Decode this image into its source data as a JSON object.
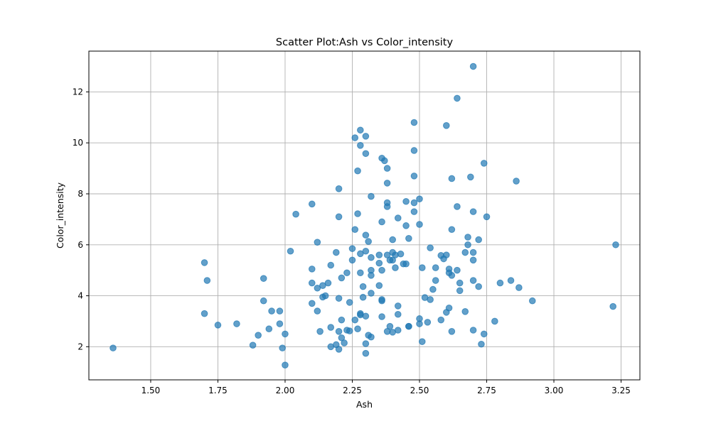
{
  "chart_data": {
    "type": "scatter",
    "title": "Scatter Plot:Ash vs Color_intensity",
    "xlabel": "Ash",
    "ylabel": "Color_intensity",
    "xlim": [
      1.27,
      3.32
    ],
    "ylim": [
      0.7,
      13.6
    ],
    "xticks": [
      1.5,
      1.75,
      2.0,
      2.25,
      2.5,
      2.75,
      3.0,
      3.25
    ],
    "xtick_labels": [
      "1.50",
      "1.75",
      "2.00",
      "2.25",
      "2.50",
      "2.75",
      "3.00",
      "3.25"
    ],
    "yticks": [
      2,
      4,
      6,
      8,
      10,
      12
    ],
    "ytick_labels": [
      "2",
      "4",
      "6",
      "8",
      "10",
      "12"
    ],
    "grid": true,
    "marker_color": "#1f77b4",
    "marker_opacity": 0.7,
    "points": [
      [
        1.36,
        1.95
      ],
      [
        1.7,
        5.3
      ],
      [
        1.7,
        3.3
      ],
      [
        1.71,
        4.6
      ],
      [
        1.75,
        2.85
      ],
      [
        1.82,
        2.9
      ],
      [
        1.88,
        2.06
      ],
      [
        1.9,
        2.45
      ],
      [
        1.92,
        4.68
      ],
      [
        1.92,
        3.8
      ],
      [
        1.94,
        2.7
      ],
      [
        1.95,
        3.4
      ],
      [
        1.98,
        3.4
      ],
      [
        1.98,
        2.9
      ],
      [
        1.99,
        1.95
      ],
      [
        2.0,
        2.5
      ],
      [
        2.0,
        1.28
      ],
      [
        2.02,
        5.75
      ],
      [
        2.04,
        7.2
      ],
      [
        2.1,
        7.6
      ],
      [
        2.1,
        5.05
      ],
      [
        2.1,
        4.5
      ],
      [
        2.1,
        3.7
      ],
      [
        2.12,
        6.1
      ],
      [
        2.12,
        4.3
      ],
      [
        2.12,
        3.4
      ],
      [
        2.13,
        2.6
      ],
      [
        2.14,
        4.4
      ],
      [
        2.14,
        3.95
      ],
      [
        2.15,
        4.0
      ],
      [
        2.16,
        4.5
      ],
      [
        2.17,
        5.2
      ],
      [
        2.17,
        2.76
      ],
      [
        2.17,
        2.0
      ],
      [
        2.19,
        5.7
      ],
      [
        2.19,
        2.08
      ],
      [
        2.2,
        8.2
      ],
      [
        2.2,
        7.1
      ],
      [
        2.2,
        3.9
      ],
      [
        2.2,
        2.6
      ],
      [
        2.2,
        1.9
      ],
      [
        2.21,
        4.7
      ],
      [
        2.21,
        3.05
      ],
      [
        2.21,
        2.35
      ],
      [
        2.22,
        2.15
      ],
      [
        2.23,
        4.9
      ],
      [
        2.23,
        2.65
      ],
      [
        2.24,
        3.74
      ],
      [
        2.24,
        2.62
      ],
      [
        2.25,
        5.85
      ],
      [
        2.25,
        5.4
      ],
      [
        2.26,
        10.2
      ],
      [
        2.26,
        6.6
      ],
      [
        2.26,
        3.05
      ],
      [
        2.27,
        8.9
      ],
      [
        2.27,
        7.22
      ],
      [
        2.27,
        2.7
      ],
      [
        2.28,
        10.5
      ],
      [
        2.28,
        9.9
      ],
      [
        2.28,
        5.65
      ],
      [
        2.28,
        4.9
      ],
      [
        2.28,
        3.3
      ],
      [
        2.28,
        3.25
      ],
      [
        2.29,
        4.36
      ],
      [
        2.29,
        3.94
      ],
      [
        2.3,
        10.26
      ],
      [
        2.3,
        9.58
      ],
      [
        2.3,
        6.38
      ],
      [
        2.3,
        5.75
      ],
      [
        2.3,
        3.2
      ],
      [
        2.3,
        2.12
      ],
      [
        2.3,
        1.74
      ],
      [
        2.31,
        6.13
      ],
      [
        2.31,
        2.45
      ],
      [
        2.32,
        7.9
      ],
      [
        2.32,
        5.5
      ],
      [
        2.32,
        5.0
      ],
      [
        2.32,
        4.8
      ],
      [
        2.32,
        4.1
      ],
      [
        2.32,
        2.38
      ],
      [
        2.35,
        5.6
      ],
      [
        2.35,
        5.28
      ],
      [
        2.35,
        4.4
      ],
      [
        2.36,
        9.4
      ],
      [
        2.36,
        6.9
      ],
      [
        2.36,
        5.0
      ],
      [
        2.36,
        3.85
      ],
      [
        2.36,
        3.8
      ],
      [
        2.36,
        3.18
      ],
      [
        2.37,
        9.3
      ],
      [
        2.38,
        9.0
      ],
      [
        2.38,
        8.42
      ],
      [
        2.38,
        7.65
      ],
      [
        2.38,
        7.5
      ],
      [
        2.38,
        5.6
      ],
      [
        2.38,
        2.6
      ],
      [
        2.39,
        5.4
      ],
      [
        2.39,
        2.8
      ],
      [
        2.4,
        6.2
      ],
      [
        2.4,
        5.7
      ],
      [
        2.4,
        5.4
      ],
      [
        2.4,
        2.57
      ],
      [
        2.41,
        5.6
      ],
      [
        2.41,
        5.1
      ],
      [
        2.42,
        7.05
      ],
      [
        2.42,
        3.6
      ],
      [
        2.42,
        3.27
      ],
      [
        2.42,
        2.65
      ],
      [
        2.43,
        5.64
      ],
      [
        2.44,
        5.25
      ],
      [
        2.45,
        7.7
      ],
      [
        2.45,
        6.75
      ],
      [
        2.45,
        5.25
      ],
      [
        2.46,
        6.25
      ],
      [
        2.46,
        2.8
      ],
      [
        2.46,
        2.8
      ],
      [
        2.48,
        10.8
      ],
      [
        2.48,
        9.7
      ],
      [
        2.48,
        8.7
      ],
      [
        2.48,
        7.65
      ],
      [
        2.48,
        7.3
      ],
      [
        2.5,
        7.8
      ],
      [
        2.5,
        6.8
      ],
      [
        2.5,
        3.1
      ],
      [
        2.5,
        2.9
      ],
      [
        2.51,
        5.1
      ],
      [
        2.51,
        2.2
      ],
      [
        2.52,
        3.93
      ],
      [
        2.53,
        2.96
      ],
      [
        2.54,
        5.88
      ],
      [
        2.54,
        3.85
      ],
      [
        2.55,
        4.25
      ],
      [
        2.56,
        5.1
      ],
      [
        2.56,
        4.6
      ],
      [
        2.58,
        5.58
      ],
      [
        2.58,
        3.05
      ],
      [
        2.59,
        5.45
      ],
      [
        2.6,
        10.68
      ],
      [
        2.6,
        5.6
      ],
      [
        2.6,
        3.35
      ],
      [
        2.61,
        5.05
      ],
      [
        2.61,
        4.9
      ],
      [
        2.61,
        3.52
      ],
      [
        2.62,
        8.6
      ],
      [
        2.62,
        6.6
      ],
      [
        2.62,
        4.8
      ],
      [
        2.62,
        2.6
      ],
      [
        2.64,
        11.75
      ],
      [
        2.64,
        7.5
      ],
      [
        2.64,
        5.0
      ],
      [
        2.65,
        4.5
      ],
      [
        2.65,
        4.2
      ],
      [
        2.67,
        5.7
      ],
      [
        2.67,
        3.38
      ],
      [
        2.68,
        6.3
      ],
      [
        2.68,
        6.0
      ],
      [
        2.69,
        8.66
      ],
      [
        2.7,
        13.0
      ],
      [
        2.7,
        7.3
      ],
      [
        2.7,
        5.7
      ],
      [
        2.7,
        5.4
      ],
      [
        2.7,
        4.6
      ],
      [
        2.7,
        2.65
      ],
      [
        2.72,
        6.2
      ],
      [
        2.72,
        4.36
      ],
      [
        2.73,
        2.1
      ],
      [
        2.74,
        9.2
      ],
      [
        2.74,
        2.5
      ],
      [
        2.75,
        7.1
      ],
      [
        2.78,
        3.0
      ],
      [
        2.8,
        4.5
      ],
      [
        2.84,
        4.6
      ],
      [
        2.86,
        8.5
      ],
      [
        2.87,
        4.32
      ],
      [
        2.92,
        3.8
      ],
      [
        3.22,
        3.58
      ],
      [
        3.23,
        6.0
      ]
    ]
  }
}
